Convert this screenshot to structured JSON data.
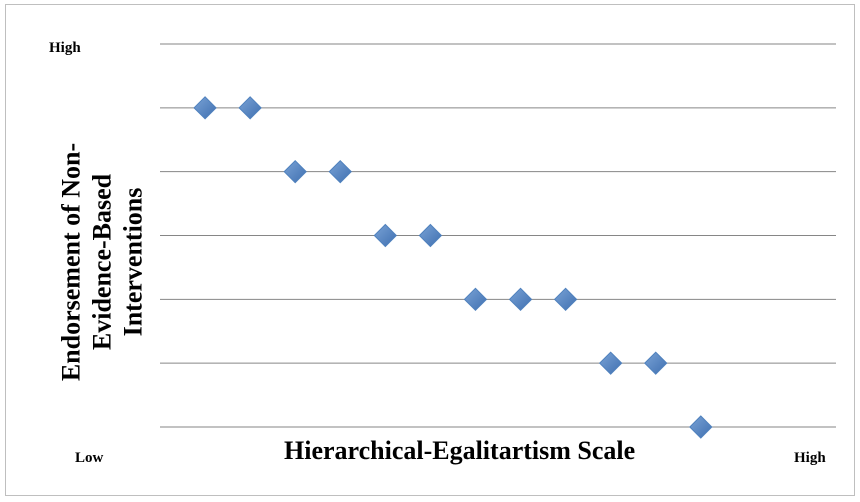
{
  "chart_data": {
    "type": "scatter",
    "title": "",
    "xlabel": "Hierarchical-Egalitartism Scale",
    "ylabel_lines": [
      "Endorsement of Non-",
      "Evidence-Based",
      "Interventions"
    ],
    "x_tick_labels": {
      "low": "Low",
      "high": "High"
    },
    "y_tick_labels": {
      "high": "High"
    },
    "xlim": [
      0,
      15
    ],
    "ylim": [
      0,
      6
    ],
    "y_gridlines": [
      1,
      2,
      3,
      4,
      5,
      6
    ],
    "grid": true,
    "legend": "none",
    "marker": "diamond",
    "marker_color": "#4f81bd",
    "gridline_color": "#868686",
    "points": [
      {
        "x": 1,
        "y": 5
      },
      {
        "x": 2,
        "y": 5
      },
      {
        "x": 3,
        "y": 4
      },
      {
        "x": 4,
        "y": 4
      },
      {
        "x": 5,
        "y": 3
      },
      {
        "x": 6,
        "y": 3
      },
      {
        "x": 7,
        "y": 2
      },
      {
        "x": 8,
        "y": 2
      },
      {
        "x": 9,
        "y": 2
      },
      {
        "x": 10,
        "y": 1
      },
      {
        "x": 11,
        "y": 1
      },
      {
        "x": 12,
        "y": 0
      }
    ]
  }
}
